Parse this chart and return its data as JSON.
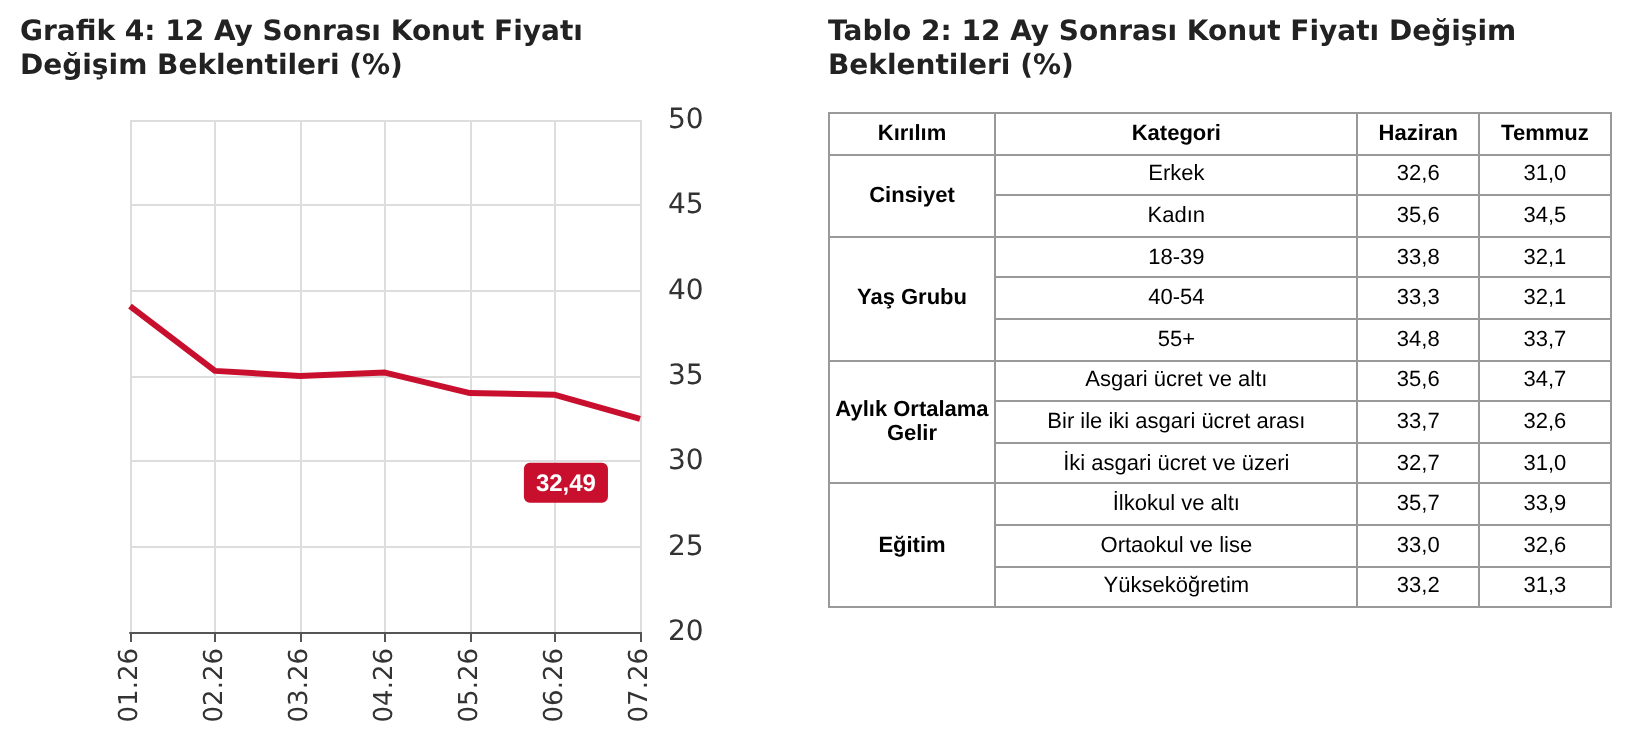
{
  "chart_data": [
    {
      "type": "line",
      "title": "Grafik 4: 12 Ay Sonrası Konut Fiyatı Değişim Beklentileri (%)",
      "categories": [
        "01.26",
        "02.26",
        "03.26",
        "04.26",
        "05.26",
        "06.26",
        "07.26"
      ],
      "series": [
        {
          "color": "#c8102e",
          "values": [
            39.1,
            35.3,
            35.0,
            35.2,
            34.0,
            33.9,
            32.49
          ],
          "value_labels": [
            null,
            null,
            null,
            null,
            null,
            null,
            "32,49"
          ]
        }
      ],
      "ylim": [
        20,
        50
      ],
      "yticks": [
        20,
        25,
        30,
        35,
        40,
        45,
        50
      ],
      "grid": true,
      "marker": "none",
      "line_style": "solid"
    },
    {
      "type": "other",
      "title": "Tablo 2: 12 Ay Sonrası Konut Fiyatı Değişim Beklentileri (%)",
      "annotations": [
        "Kırılım",
        "Kategori",
        "Haziran",
        "Temmuz",
        "Cinsiyet",
        "Erkek",
        "32,6",
        "31,0",
        "Kadın",
        "35,6",
        "34,5",
        "Yaş Grubu",
        "18-39",
        "33,8",
        "32,1",
        "40-54",
        "33,3",
        "32,1",
        "55+",
        "34,8",
        "33,7",
        "Aylık Ortalama Gelir",
        "Asgari ücret ve altı",
        "35,6",
        "34,7",
        "Bir ile iki asgari ücret arası",
        "33,7",
        "32,6",
        "İki asgari ücret ve üzeri",
        "32,7",
        "31,0",
        "Eğitim",
        "İlkokul ve altı",
        "35,7",
        "33,9",
        "Ortaokul ve lise",
        "33,0",
        "32,6",
        "Yükseköğretim",
        "33,2",
        "31,3"
      ]
    }
  ]
}
